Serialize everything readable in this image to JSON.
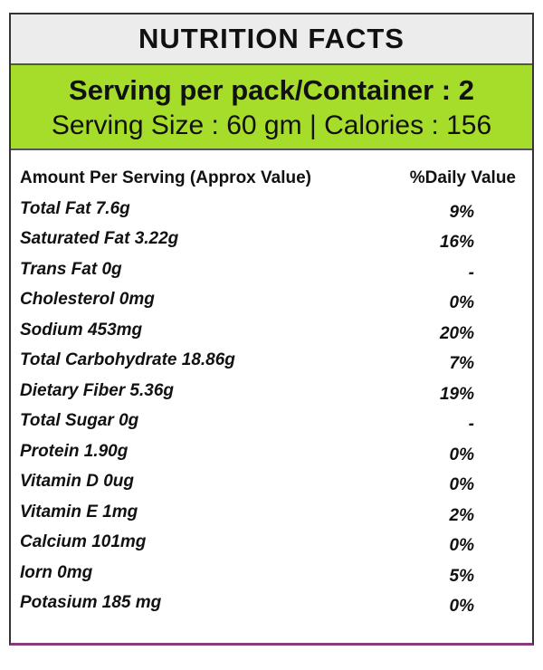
{
  "header": {
    "title": "NUTRITION FACTS"
  },
  "serving": {
    "line1": "Serving per pack/Container : 2",
    "line2": "Serving Size : 60 gm | Calories : 156"
  },
  "table": {
    "header": [
      "Amount Per Serving (Approx Value)",
      "%Daily Value"
    ],
    "rows": [
      [
        "Total Fat 7.6g",
        "9%"
      ],
      [
        "Saturated Fat 3.22g",
        "16%"
      ],
      [
        "Trans Fat 0g",
        "-"
      ],
      [
        "Cholesterol 0mg",
        "0%"
      ],
      [
        "Sodium 453mg",
        "20%"
      ],
      [
        "Total Carbohydrate 18.86g",
        "7%"
      ],
      [
        "Dietary Fiber 5.36g",
        "19%"
      ],
      [
        "Total Sugar 0g",
        "-"
      ],
      [
        "Protein 1.90g",
        "0%"
      ],
      [
        "Vitamin D 0ug",
        "0%"
      ],
      [
        "Vitamin E 1mg",
        "2%"
      ],
      [
        "Calcium 101mg",
        "0%"
      ],
      [
        "Iorn 0mg",
        "5%"
      ],
      [
        "Potasium 185 mg",
        "0%"
      ]
    ]
  }
}
